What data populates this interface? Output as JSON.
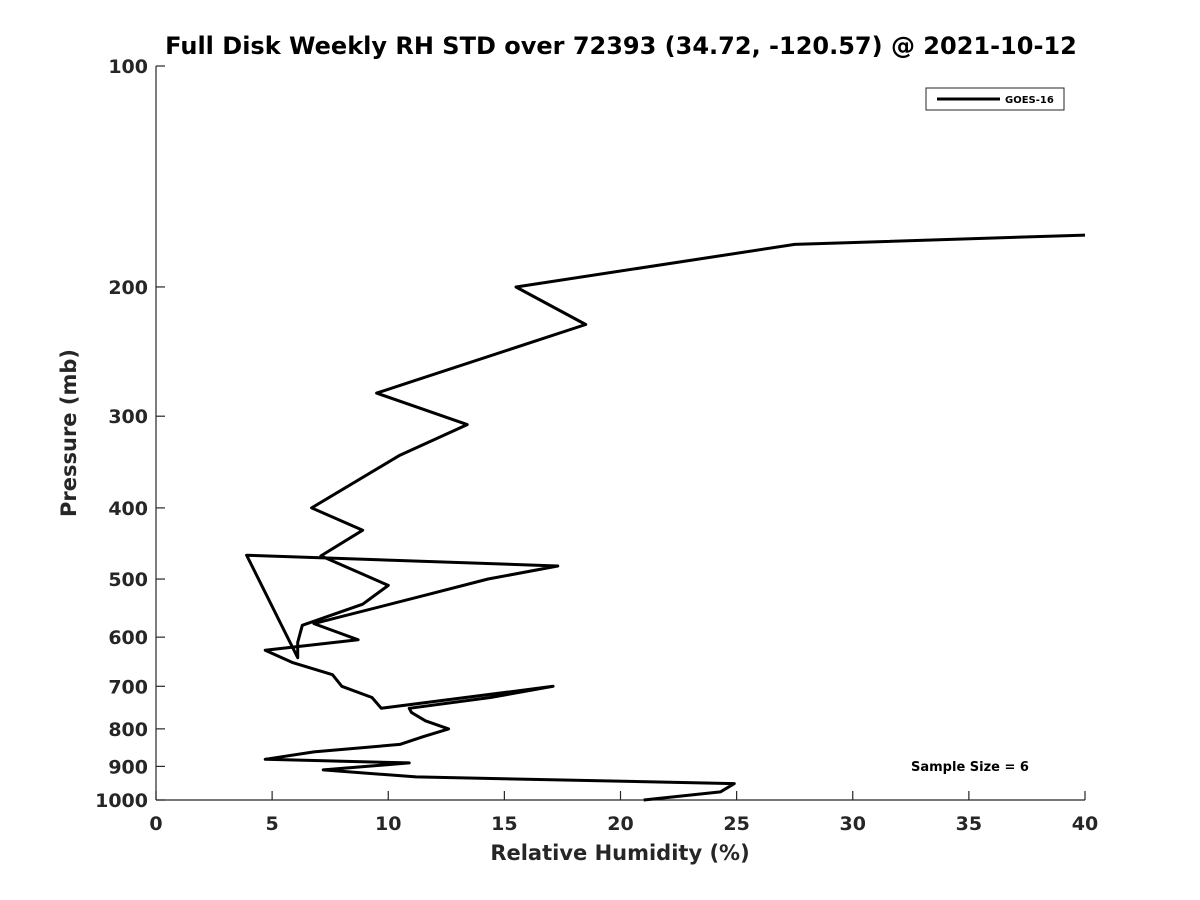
{
  "chart_data": {
    "type": "line",
    "title": "Full Disk Weekly RH STD over 72393 (34.72, -120.57) @ 2021-10-12",
    "xlabel": "Relative Humidity (%)",
    "ylabel": "Pressure (mb)",
    "xlim": [
      0,
      40
    ],
    "ylim": [
      100,
      1000
    ],
    "y_scale": "log",
    "y_reversed": true,
    "x_ticks": [
      "0",
      "5",
      "10",
      "15",
      "20",
      "25",
      "30",
      "35",
      "40"
    ],
    "y_ticks": [
      "100",
      "200",
      "300",
      "400",
      "500",
      "600",
      "700",
      "800",
      "900",
      "1000"
    ],
    "grid": false,
    "legend_position": "top-right",
    "annotation": "Sample Size = 6",
    "series": [
      {
        "name": "GOES-16",
        "color": "#000000",
        "x": [
          40.0,
          27.5,
          15.5,
          18.5,
          9.5,
          13.4,
          10.5,
          6.7,
          8.9,
          7.1,
          10.0,
          8.9,
          6.3,
          6.1,
          6.1,
          3.9,
          17.3,
          14.3,
          11.7,
          6.8,
          8.7,
          4.7,
          5.9,
          7.6,
          8.0,
          9.3,
          9.7,
          17.1,
          14.4,
          10.9,
          11.0,
          11.6,
          12.6,
          11.5,
          10.5,
          6.8,
          4.7,
          10.9,
          7.2,
          11.2,
          24.9,
          24.3,
          21.0
        ],
        "y": [
          170,
          175,
          200,
          225,
          279,
          308,
          339,
          400,
          429,
          465,
          510,
          541,
          578,
          610,
          640,
          464,
          480,
          500,
          525,
          575,
          605,
          625,
          650,
          675,
          700,
          725,
          750,
          700,
          725,
          750,
          760,
          780,
          800,
          820,
          840,
          860,
          880,
          890,
          910,
          930,
          950,
          975,
          1000
        ]
      }
    ]
  }
}
